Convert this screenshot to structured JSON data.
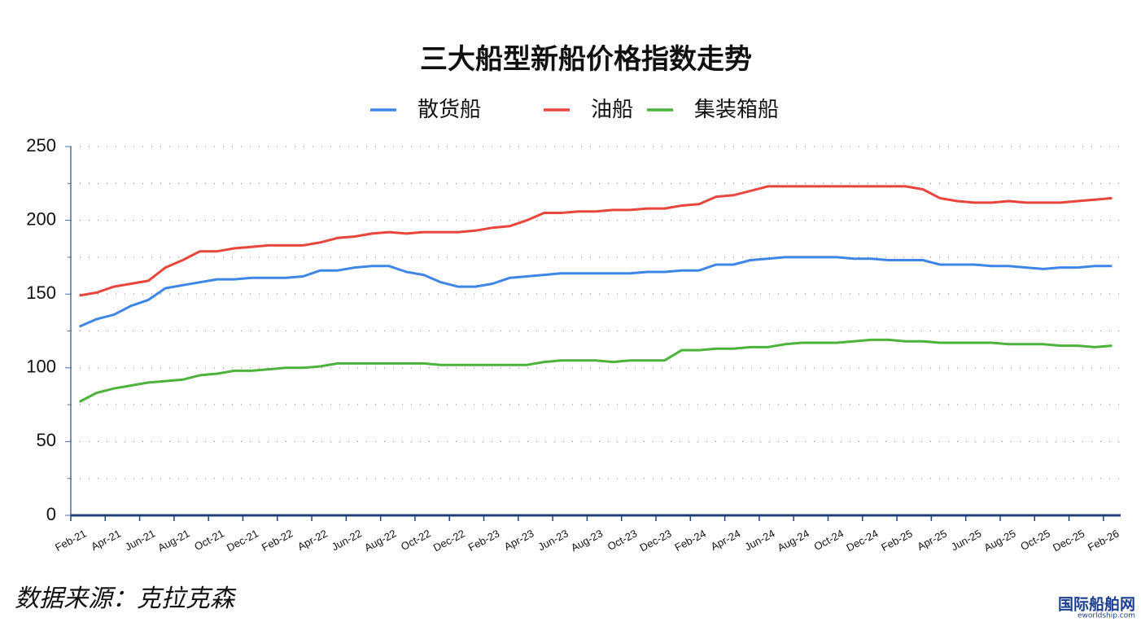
{
  "chart_data": {
    "type": "line",
    "title": "三大船型新船价格指数走势",
    "categories": [
      "Feb-21",
      null,
      "Apr-21",
      null,
      "Jun-21",
      null,
      "Aug-21",
      null,
      "Oct-21",
      null,
      "Dec-21",
      null,
      "Feb-22",
      null,
      "Apr-22",
      null,
      "Jun-22",
      null,
      "Aug-22",
      null,
      "Oct-22",
      null,
      "Dec-22",
      null,
      "Feb-23",
      null,
      "Apr-23",
      null,
      "Jun-23",
      null,
      "Aug-23",
      null,
      "Oct-23",
      null,
      "Dec-23",
      null,
      "Feb-24",
      null,
      "Apr-24",
      null,
      "Jun-24",
      null,
      "Aug-24",
      null,
      "Oct-24",
      null,
      "Dec-24",
      null,
      "Feb-25",
      null,
      "Apr-25",
      null,
      "Jun-25",
      null,
      "Aug-25",
      null,
      "Oct-25",
      null,
      "Dec-25",
      null,
      "Feb-26"
    ],
    "series": [
      {
        "name": "散货船",
        "color": "#3d86e6",
        "values": [
          128,
          133,
          136,
          142,
          146,
          154,
          156,
          158,
          160,
          160,
          161,
          161,
          161,
          162,
          166,
          166,
          168,
          169,
          169,
          165,
          163,
          158,
          155,
          155,
          157,
          161,
          162,
          163,
          164,
          164,
          164,
          164,
          164,
          165,
          165,
          166,
          166,
          170,
          170,
          173,
          174,
          175,
          175,
          175,
          175,
          174,
          174,
          173,
          173,
          173,
          170,
          170,
          170,
          169,
          169,
          168,
          167,
          168,
          168,
          169,
          169
        ]
      },
      {
        "name": "油船",
        "color": "#e8453c",
        "values": [
          149,
          151,
          155,
          157,
          159,
          168,
          173,
          179,
          179,
          181,
          182,
          183,
          183,
          183,
          185,
          188,
          189,
          191,
          192,
          191,
          192,
          192,
          192,
          193,
          195,
          196,
          200,
          205,
          205,
          206,
          206,
          207,
          207,
          208,
          208,
          210,
          211,
          216,
          217,
          220,
          223,
          223,
          223,
          223,
          223,
          223,
          223,
          223,
          223,
          221,
          215,
          213,
          212,
          212,
          213,
          212,
          212,
          212,
          213,
          214,
          215
        ]
      },
      {
        "name": "集装箱船",
        "color": "#4cb33a",
        "values": [
          77,
          83,
          86,
          88,
          90,
          91,
          92,
          95,
          96,
          98,
          98,
          99,
          100,
          100,
          101,
          103,
          103,
          103,
          103,
          103,
          103,
          102,
          102,
          102,
          102,
          102,
          102,
          104,
          105,
          105,
          105,
          104,
          105,
          105,
          105,
          112,
          112,
          113,
          113,
          114,
          114,
          116,
          117,
          117,
          117,
          118,
          119,
          119,
          118,
          118,
          117,
          117,
          117,
          117,
          116,
          116,
          116,
          115,
          115,
          114,
          115
        ]
      }
    ],
    "ylim": [
      0,
      250
    ],
    "yticks": [
      0,
      50,
      100,
      150,
      200,
      250
    ],
    "minor_yticks": [
      25,
      75,
      125,
      175,
      225
    ],
    "grid": true,
    "source": "数据来源：克拉克森",
    "watermark": "国际船舶网",
    "watermark_url": "eworldship.com"
  }
}
